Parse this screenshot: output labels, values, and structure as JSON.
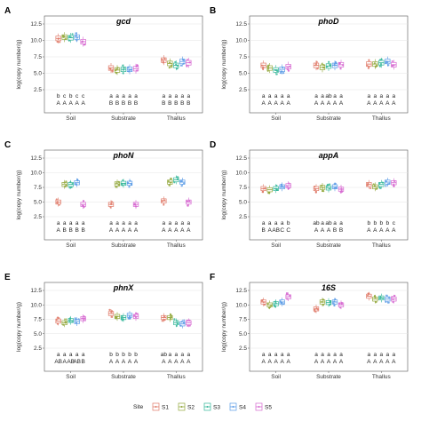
{
  "colors": {
    "S1": "#e07b6a",
    "S2": "#93a83c",
    "S3": "#35b79a",
    "S4": "#5a9be6",
    "S5": "#d667d0"
  },
  "legend": {
    "title": "Site",
    "items": [
      "S1",
      "S2",
      "S3",
      "S4",
      "S5"
    ]
  },
  "chart_data": [
    {
      "type": "box",
      "panel": "A",
      "title": "gcd",
      "ylabel": "log(copy number/g)",
      "ylim": [
        2.5,
        12.5
      ],
      "yticks": [
        "2.5",
        "5.0",
        "7.5",
        "10.0",
        "12.5"
      ],
      "categories": [
        "Soil",
        "Substrate",
        "Thallus"
      ],
      "series": [
        {
          "name": "S1",
          "medians": [
            10.3,
            5.8,
            7.0
          ]
        },
        {
          "name": "S2",
          "medians": [
            10.5,
            5.5,
            6.5
          ]
        },
        {
          "name": "S3",
          "medians": [
            10.4,
            5.6,
            6.2
          ]
        },
        {
          "name": "S4",
          "medians": [
            10.5,
            5.6,
            6.8
          ]
        },
        {
          "name": "S5",
          "medians": [
            9.8,
            5.7,
            6.6
          ]
        }
      ],
      "letters_lower": [
        [
          "b",
          "c",
          "b",
          "c",
          "c"
        ],
        [
          "a",
          "a",
          "a",
          "a",
          "a"
        ],
        [
          "a",
          "a",
          "a",
          "a",
          "a"
        ]
      ],
      "letters_upper": [
        [
          "A",
          "A",
          "A",
          "A",
          "A"
        ],
        [
          "B",
          "B",
          "B",
          "B",
          "B"
        ],
        [
          "B",
          "B",
          "B",
          "B",
          "B"
        ]
      ]
    },
    {
      "type": "box",
      "panel": "B",
      "title": "phoD",
      "ylabel": "log(copy number/g)",
      "ylim": [
        2.5,
        12.5
      ],
      "yticks": [
        "2.5",
        "5.0",
        "7.5",
        "10.0",
        "12.5"
      ],
      "categories": [
        "Soil",
        "Substrate",
        "Thallus"
      ],
      "series": [
        {
          "name": "S1",
          "medians": [
            6.2,
            6.2,
            6.4
          ]
        },
        {
          "name": "S2",
          "medians": [
            5.8,
            5.9,
            6.4
          ]
        },
        {
          "name": "S3",
          "medians": [
            5.5,
            6.1,
            6.6
          ]
        },
        {
          "name": "S4",
          "medians": [
            5.6,
            6.2,
            6.8
          ]
        },
        {
          "name": "S5",
          "medians": [
            6.0,
            6.3,
            6.3
          ]
        }
      ],
      "letters_lower": [
        [
          "a",
          "a",
          "a",
          "a",
          "a"
        ],
        [
          "a",
          "a",
          "ab",
          "a",
          "a"
        ],
        [
          "a",
          "a",
          "a",
          "a",
          "a"
        ]
      ],
      "letters_upper": [
        [
          "A",
          "A",
          "A",
          "A",
          "A"
        ],
        [
          "A",
          "A",
          "A",
          "A",
          "A"
        ],
        [
          "A",
          "A",
          "A",
          "A",
          "A"
        ]
      ]
    },
    {
      "type": "box",
      "panel": "C",
      "title": "phoN",
      "ylabel": "log(copy number/g)",
      "ylim": [
        2.5,
        12.5
      ],
      "yticks": [
        "2.5",
        "5.0",
        "7.5",
        "10.0",
        "12.5"
      ],
      "categories": [
        "Soil",
        "Substrate",
        "Thallus"
      ],
      "series": [
        {
          "name": "S1",
          "medians": [
            5.0,
            4.6,
            5.2
          ]
        },
        {
          "name": "S2",
          "medians": [
            8.0,
            8.1,
            8.4
          ]
        },
        {
          "name": "S3",
          "medians": [
            8.0,
            8.2,
            8.8
          ]
        },
        {
          "name": "S4",
          "medians": [
            8.3,
            8.2,
            8.4
          ]
        },
        {
          "name": "S5",
          "medians": [
            4.6,
            4.6,
            5.0
          ]
        }
      ],
      "letters_lower": [
        [
          "a",
          "a",
          "a",
          "a",
          "a"
        ],
        [
          "a",
          "a",
          "a",
          "a",
          "a"
        ],
        [
          "a",
          "a",
          "a",
          "a",
          "a"
        ]
      ],
      "letters_upper": [
        [
          "A",
          "B",
          "B",
          "B",
          "B"
        ],
        [
          "A",
          "A",
          "A",
          "A",
          "A"
        ],
        [
          "A",
          "A",
          "A",
          "A",
          "A"
        ]
      ]
    },
    {
      "type": "box",
      "panel": "D",
      "title": "appA",
      "ylabel": "log(copy number/g)",
      "ylim": [
        2.5,
        12.5
      ],
      "yticks": [
        "2.5",
        "5.0",
        "7.5",
        "10.0",
        "12.5"
      ],
      "categories": [
        "Soil",
        "Substrate",
        "Thallus"
      ],
      "series": [
        {
          "name": "S1",
          "medians": [
            7.3,
            7.3,
            8.0
          ]
        },
        {
          "name": "S2",
          "medians": [
            7.1,
            7.5,
            7.6
          ]
        },
        {
          "name": "S3",
          "medians": [
            7.3,
            7.4,
            8.0
          ]
        },
        {
          "name": "S4",
          "medians": [
            7.6,
            7.6,
            8.4
          ]
        },
        {
          "name": "S5",
          "medians": [
            7.8,
            7.2,
            8.3
          ]
        }
      ],
      "letters_lower": [
        [
          "a",
          "a",
          "a",
          "a",
          "b"
        ],
        [
          "ab",
          "a",
          "ab",
          "a",
          "a"
        ],
        [
          "b",
          "b",
          "b",
          "b",
          "c"
        ]
      ],
      "letters_upper": [
        [
          "B",
          "A",
          "AB",
          "C",
          "C"
        ],
        [
          "A",
          "A",
          "A",
          "B",
          "B"
        ],
        [
          "A",
          "A",
          "A",
          "A",
          "A"
        ]
      ]
    },
    {
      "type": "box",
      "panel": "E",
      "title": "phnX",
      "ylabel": "log(copy number/g)",
      "ylim": [
        2.5,
        12.5
      ],
      "yticks": [
        "2.5",
        "5.0",
        "7.5",
        "10.0",
        "12.5"
      ],
      "categories": [
        "Soil",
        "Substrate",
        "Thallus"
      ],
      "series": [
        {
          "name": "S1",
          "medians": [
            7.2,
            8.5,
            7.8
          ]
        },
        {
          "name": "S2",
          "medians": [
            6.9,
            8.0,
            7.8
          ]
        },
        {
          "name": "S3",
          "medians": [
            7.3,
            7.8,
            6.9
          ]
        },
        {
          "name": "S4",
          "medians": [
            7.1,
            8.2,
            6.7
          ]
        },
        {
          "name": "S5",
          "medians": [
            7.6,
            8.0,
            6.9
          ]
        }
      ],
      "letters_lower": [
        [
          "a",
          "a",
          "a",
          "a",
          "a"
        ],
        [
          "b",
          "b",
          "b",
          "b",
          "b"
        ],
        [
          "ab",
          "a",
          "a",
          "a",
          "a"
        ]
      ],
      "letters_upper": [
        [
          "AB",
          "A",
          "AB",
          "AB",
          "B"
        ],
        [
          "A",
          "A",
          "A",
          "A",
          "A"
        ],
        [
          "A",
          "A",
          "A",
          "A",
          "A"
        ]
      ]
    },
    {
      "type": "box",
      "panel": "F",
      "title": "16S",
      "ylabel": "log(copy number/g)",
      "ylim": [
        2.5,
        12.5
      ],
      "yticks": [
        "2.5",
        "5.0",
        "7.5",
        "10.0",
        "12.5"
      ],
      "categories": [
        "Soil",
        "Substrate",
        "Thallus"
      ],
      "series": [
        {
          "name": "S1",
          "medians": [
            10.5,
            9.3,
            11.5
          ]
        },
        {
          "name": "S2",
          "medians": [
            10.0,
            10.5,
            11.0
          ]
        },
        {
          "name": "S3",
          "medians": [
            10.2,
            10.4,
            11.2
          ]
        },
        {
          "name": "S4",
          "medians": [
            10.5,
            10.5,
            11.0
          ]
        },
        {
          "name": "S5",
          "medians": [
            11.4,
            10.0,
            11.0
          ]
        }
      ],
      "letters_lower": [
        [
          "a",
          "a",
          "a",
          "a",
          "a"
        ],
        [
          "a",
          "a",
          "a",
          "a",
          "a"
        ],
        [
          "a",
          "a",
          "a",
          "a",
          "a"
        ]
      ],
      "letters_upper": [
        [
          "A",
          "A",
          "A",
          "A",
          "A"
        ],
        [
          "A",
          "A",
          "A",
          "A",
          "A"
        ],
        [
          "A",
          "A",
          "A",
          "A",
          "A"
        ]
      ]
    }
  ]
}
